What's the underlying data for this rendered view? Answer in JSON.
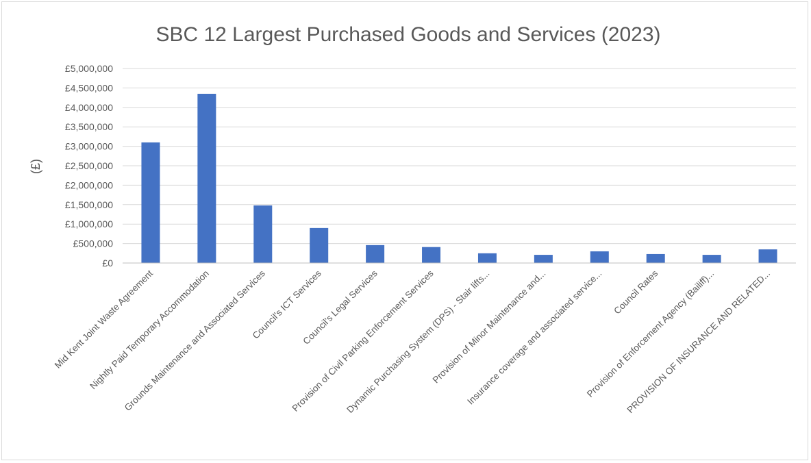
{
  "chart_data": {
    "type": "bar",
    "title": "SBC 12 Largest Purchased Goods and Services (2023)",
    "xlabel": "",
    "ylabel": "(£)",
    "ylim": [
      0,
      5000000
    ],
    "grid": true,
    "legend": "none",
    "bar_color": "#4472C4",
    "y_ticks": [
      "£0",
      "£500,000",
      "£1,000,000",
      "£1,500,000",
      "£2,000,000",
      "£2,500,000",
      "£3,000,000",
      "£3,500,000",
      "£4,000,000",
      "£4,500,000",
      "£5,000,000"
    ],
    "categories": [
      "Mid Kent Joint Waste Agreement",
      "Nightly Paid Temporary Accommodation",
      "Grounds Maintenance and Associated Services",
      "Council's ICT Services",
      "Council's Legal Services",
      "Provision of Civil Parking Enforcement Services",
      "Dynamic Purchasing System (DPS) - Stair lifts...",
      "Provision of Minor Maintenance and...",
      "Insurance coverage and associated service...",
      "Council Rates",
      "Provision of Enforcement Agency (Bailiff)...",
      "PROVISION OF INSURANCE AND RELATED..."
    ],
    "values": [
      3100000,
      4350000,
      1480000,
      900000,
      460000,
      410000,
      250000,
      210000,
      300000,
      230000,
      210000,
      350000
    ]
  }
}
